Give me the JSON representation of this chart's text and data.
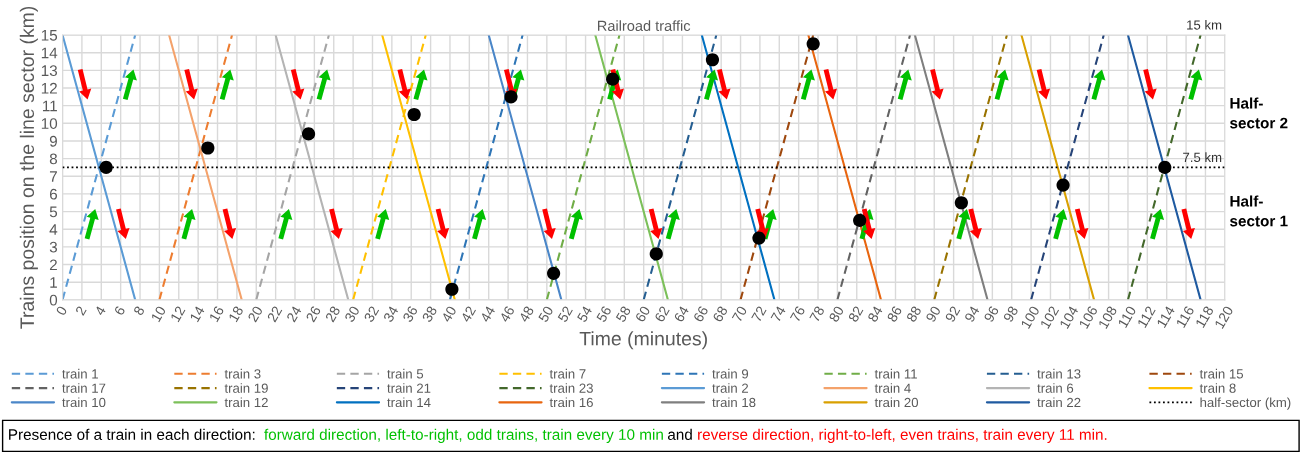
{
  "chart_data": {
    "type": "line",
    "title": "Railroad traffic",
    "xlabel": "Time (minutes)",
    "ylabel": "Trains position on the line sector (km)",
    "xlim": [
      0,
      120
    ],
    "xticks": [
      0,
      2,
      4,
      6,
      8,
      10,
      12,
      14,
      16,
      18,
      20,
      22,
      24,
      26,
      28,
      30,
      32,
      34,
      36,
      38,
      40,
      42,
      44,
      46,
      48,
      50,
      52,
      54,
      56,
      58,
      60,
      62,
      64,
      66,
      68,
      70,
      72,
      74,
      76,
      78,
      80,
      82,
      84,
      86,
      88,
      90,
      92,
      94,
      96,
      98,
      100,
      102,
      104,
      106,
      108,
      110,
      112,
      114,
      116,
      118,
      120
    ],
    "ylim": [
      0,
      15
    ],
    "yticks": [
      0,
      1,
      2,
      3,
      4,
      5,
      6,
      7,
      8,
      9,
      10,
      11,
      12,
      13,
      14,
      15
    ],
    "grid": true,
    "legend": "bottom",
    "series": [
      {
        "name": "train 1",
        "color": "#5b9bd5",
        "line_style": "dashed",
        "x": [
          0,
          7.5
        ],
        "values": [
          0,
          15
        ]
      },
      {
        "name": "train 3",
        "color": "#ed7d31",
        "line_style": "dashed",
        "x": [
          10,
          17.5
        ],
        "values": [
          0,
          15
        ]
      },
      {
        "name": "train 5",
        "color": "#a5a5a5",
        "line_style": "dashed",
        "x": [
          20,
          27.5
        ],
        "values": [
          0,
          15
        ]
      },
      {
        "name": "train 7",
        "color": "#ffc000",
        "line_style": "dashed",
        "x": [
          30,
          37.5
        ],
        "values": [
          0,
          15
        ]
      },
      {
        "name": "train 9",
        "color": "#2e75b6",
        "line_style": "dashed",
        "x": [
          40,
          47.5
        ],
        "values": [
          0,
          15
        ]
      },
      {
        "name": "train 11",
        "color": "#70ad47",
        "line_style": "dashed",
        "x": [
          50,
          57.5
        ],
        "values": [
          0,
          15
        ]
      },
      {
        "name": "train 13",
        "color": "#255e91",
        "line_style": "dashed",
        "x": [
          60,
          67.5
        ],
        "values": [
          0,
          15
        ]
      },
      {
        "name": "train 15",
        "color": "#9e480e",
        "line_style": "dashed",
        "x": [
          70,
          77.5
        ],
        "values": [
          0,
          15
        ]
      },
      {
        "name": "train 17",
        "color": "#636363",
        "line_style": "dashed",
        "x": [
          80,
          87.5
        ],
        "values": [
          0,
          15
        ]
      },
      {
        "name": "train 19",
        "color": "#997300",
        "line_style": "dashed",
        "x": [
          90,
          97.5
        ],
        "values": [
          0,
          15
        ]
      },
      {
        "name": "train 21",
        "color": "#264478",
        "line_style": "dashed",
        "x": [
          100,
          107.5
        ],
        "values": [
          0,
          15
        ]
      },
      {
        "name": "train 23",
        "color": "#43682b",
        "line_style": "dashed",
        "x": [
          110,
          117.5
        ],
        "values": [
          0,
          15
        ]
      },
      {
        "name": "train 2",
        "color": "#5b9bd5",
        "line_style": "solid",
        "x": [
          0,
          7.5
        ],
        "values": [
          15,
          0
        ]
      },
      {
        "name": "train 4",
        "color": "#f4a26b",
        "line_style": "solid",
        "x": [
          11,
          18.5
        ],
        "values": [
          15,
          0
        ]
      },
      {
        "name": "train 6",
        "color": "#b4b4b4",
        "line_style": "solid",
        "x": [
          22,
          29.5
        ],
        "values": [
          15,
          0
        ]
      },
      {
        "name": "train 8",
        "color": "#ffc000",
        "line_style": "solid",
        "x": [
          33,
          40.5
        ],
        "values": [
          15,
          0
        ]
      },
      {
        "name": "train 10",
        "color": "#4a86c8",
        "line_style": "solid",
        "x": [
          44,
          51.5
        ],
        "values": [
          15,
          0
        ]
      },
      {
        "name": "train 12",
        "color": "#7cc05a",
        "line_style": "solid",
        "x": [
          55,
          62.5
        ],
        "values": [
          15,
          0
        ]
      },
      {
        "name": "train 14",
        "color": "#0070c0",
        "line_style": "solid",
        "x": [
          66,
          73.5
        ],
        "values": [
          15,
          0
        ]
      },
      {
        "name": "train 16",
        "color": "#e8650f",
        "line_style": "solid",
        "x": [
          77,
          84.5
        ],
        "values": [
          15,
          0
        ]
      },
      {
        "name": "train 18",
        "color": "#7f7f7f",
        "line_style": "solid",
        "x": [
          88,
          95.5
        ],
        "values": [
          15,
          0
        ]
      },
      {
        "name": "train 20",
        "color": "#d9a000",
        "line_style": "solid",
        "x": [
          99,
          106.5
        ],
        "values": [
          15,
          0
        ]
      },
      {
        "name": "train 22",
        "color": "#1f5aa0",
        "line_style": "solid",
        "x": [
          110,
          117.5
        ],
        "values": [
          15,
          0
        ]
      },
      {
        "type": "scatter",
        "color": "#000000",
        "marker": "circle",
        "x": [
          4.5,
          15.0,
          25.4,
          36.3,
          40.2,
          46.3,
          50.7,
          56.8,
          61.3,
          67.1,
          71.9,
          77.5,
          82.3,
          92.8,
          103.3,
          113.8
        ],
        "values": [
          7.5,
          8.6,
          9.4,
          10.5,
          0.6,
          11.5,
          1.5,
          12.5,
          2.6,
          13.6,
          3.5,
          14.5,
          4.5,
          5.5,
          6.5,
          7.5
        ]
      }
    ],
    "ref_lines": [
      {
        "axis": "y",
        "value": 7.5,
        "label": "half-sector (km)",
        "color": "#000000",
        "line_style": "dotted"
      }
    ],
    "annotations": [
      "15 km",
      {
        "text": "7.5 km",
        "x": 120,
        "y": 7.5
      },
      "Half-\nsector 2",
      "Half-\nsector 1",
      "Presence of a train in each direction:  ",
      "forward direction, left-to-right, odd trains, train every 10 min",
      " and ",
      "reverse direction, right-to-left, even trains, train every 11 min."
    ]
  }
}
